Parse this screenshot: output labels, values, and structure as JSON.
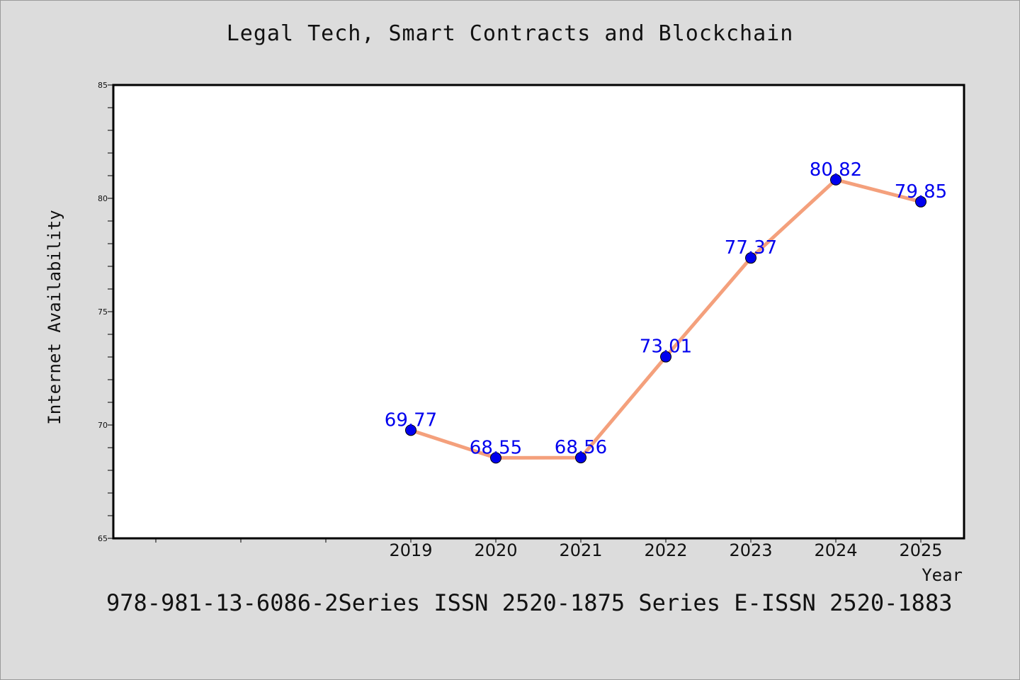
{
  "chart_data": {
    "type": "line",
    "title": "Legal Tech, Smart Contracts and Blockchain",
    "xlabel": "Year",
    "ylabel": "Internet Availability",
    "x": [
      "2019",
      "2020",
      "2021",
      "2022",
      "2023",
      "2024",
      "2025"
    ],
    "series": [
      {
        "values": [
          69.77,
          68.55,
          68.56,
          73.01,
          77.37,
          80.82,
          79.85
        ],
        "labels": [
          "69.77",
          "68.55",
          "68.56",
          "73.01",
          "77.37",
          "80.82",
          "79.85"
        ],
        "line_color": "#f4a07c",
        "marker_color": "#0000ee"
      }
    ],
    "ylim": [
      65,
      85
    ],
    "yticks": [
      "65",
      "70",
      "75",
      "80",
      "85"
    ],
    "grid": false,
    "label_color": "#0000ee"
  },
  "footer_text": "978-981-13-6086-2Series ISSN 2520-1875 Series E-ISSN 2520-1883"
}
